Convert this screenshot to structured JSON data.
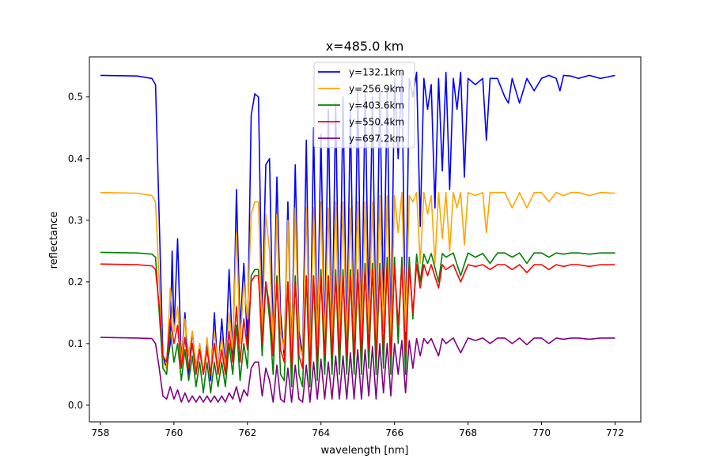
{
  "chart_data": {
    "type": "line",
    "title": "x=485.0 km",
    "xlabel": "wavelength [nm]",
    "ylabel": "reflectance",
    "xlim": [
      757.7,
      772.7
    ],
    "ylim": [
      -0.027,
      0.565
    ],
    "xticks": [
      758,
      760,
      762,
      764,
      766,
      768,
      770,
      772
    ],
    "xtick_labels": [
      "758",
      "760",
      "762",
      "764",
      "766",
      "768",
      "770",
      "772"
    ],
    "yticks": [
      0.0,
      0.1,
      0.2,
      0.3,
      0.4,
      0.5
    ],
    "ytick_labels": [
      "0.0",
      "0.1",
      "0.2",
      "0.3",
      "0.4",
      "0.5"
    ],
    "grid": false,
    "legend_position": "top-center",
    "series": [
      {
        "name": "y=132.1km",
        "color": "#0000ff",
        "x": [
          758.0,
          759.0,
          759.4,
          759.5,
          759.6,
          759.7,
          759.8,
          759.9,
          759.95,
          760.0,
          760.1,
          760.2,
          760.3,
          760.4,
          760.5,
          760.6,
          760.7,
          760.8,
          760.9,
          761.0,
          761.1,
          761.2,
          761.3,
          761.4,
          761.5,
          761.6,
          761.65,
          761.7,
          761.8,
          761.9,
          762.0,
          762.1,
          762.2,
          762.3,
          762.4,
          762.5,
          762.6,
          762.7,
          762.8,
          762.9,
          763.0,
          763.1,
          763.2,
          763.3,
          763.4,
          763.5,
          763.6,
          763.7,
          763.8,
          763.9,
          764.0,
          764.1,
          764.2,
          764.3,
          764.4,
          764.5,
          764.6,
          764.7,
          764.8,
          764.9,
          765.0,
          765.1,
          765.2,
          765.3,
          765.4,
          765.5,
          765.6,
          765.7,
          765.8,
          765.9,
          766.0,
          766.1,
          766.2,
          766.3,
          766.4,
          766.5,
          766.6,
          766.7,
          766.8,
          766.9,
          767.0,
          767.1,
          767.2,
          767.3,
          767.4,
          767.5,
          767.6,
          767.7,
          767.8,
          767.9,
          768.0,
          768.2,
          768.4,
          768.5,
          768.6,
          768.8,
          769.0,
          769.1,
          769.2,
          769.4,
          769.6,
          769.8,
          770.0,
          770.2,
          770.4,
          770.5,
          770.6,
          770.8,
          771.0,
          771.3,
          771.6,
          772.0
        ],
        "y": [
          0.535,
          0.534,
          0.53,
          0.52,
          0.3,
          0.08,
          0.06,
          0.1,
          0.25,
          0.12,
          0.27,
          0.07,
          0.15,
          0.05,
          0.12,
          0.06,
          0.1,
          0.05,
          0.1,
          0.04,
          0.15,
          0.05,
          0.14,
          0.06,
          0.22,
          0.08,
          0.2,
          0.35,
          0.12,
          0.23,
          0.1,
          0.47,
          0.505,
          0.5,
          0.15,
          0.39,
          0.4,
          0.1,
          0.37,
          0.15,
          0.08,
          0.33,
          0.08,
          0.39,
          0.12,
          0.08,
          0.43,
          0.05,
          0.45,
          0.1,
          0.44,
          0.1,
          0.48,
          0.1,
          0.49,
          0.1,
          0.5,
          0.1,
          0.48,
          0.1,
          0.51,
          0.1,
          0.51,
          0.15,
          0.5,
          0.1,
          0.52,
          0.15,
          0.51,
          0.1,
          0.53,
          0.4,
          0.54,
          0.1,
          0.53,
          0.5,
          0.54,
          0.29,
          0.53,
          0.48,
          0.52,
          0.32,
          0.53,
          0.38,
          0.54,
          0.35,
          0.53,
          0.48,
          0.54,
          0.37,
          0.53,
          0.52,
          0.53,
          0.43,
          0.53,
          0.53,
          0.5,
          0.49,
          0.53,
          0.49,
          0.53,
          0.51,
          0.53,
          0.535,
          0.53,
          0.51,
          0.535,
          0.534,
          0.53,
          0.535,
          0.53,
          0.535
        ]
      },
      {
        "name": "y=256.9km",
        "color": "#ffa500",
        "x": [
          758.0,
          759.0,
          759.4,
          759.5,
          759.6,
          759.7,
          759.8,
          759.9,
          760.0,
          760.1,
          760.2,
          760.3,
          760.4,
          760.5,
          760.6,
          760.7,
          760.8,
          760.9,
          761.0,
          761.1,
          761.2,
          761.3,
          761.4,
          761.5,
          761.6,
          761.7,
          761.8,
          761.9,
          762.0,
          762.1,
          762.2,
          762.3,
          762.4,
          762.5,
          762.6,
          762.7,
          762.8,
          762.9,
          763.0,
          763.1,
          763.2,
          763.3,
          763.4,
          763.5,
          763.6,
          763.7,
          763.8,
          763.9,
          764.0,
          764.1,
          764.2,
          764.3,
          764.4,
          764.5,
          764.6,
          764.7,
          764.8,
          764.9,
          765.0,
          765.1,
          765.2,
          765.3,
          765.4,
          765.5,
          765.6,
          765.7,
          765.8,
          765.9,
          766.0,
          766.1,
          766.2,
          766.3,
          766.4,
          766.5,
          766.6,
          766.7,
          766.8,
          766.9,
          767.0,
          767.1,
          767.2,
          767.3,
          767.4,
          767.5,
          767.6,
          767.7,
          767.8,
          767.9,
          768.0,
          768.2,
          768.4,
          768.5,
          768.6,
          768.8,
          769.0,
          769.2,
          769.4,
          769.6,
          769.8,
          770.0,
          770.2,
          770.4,
          770.6,
          770.8,
          771.0,
          771.3,
          771.6,
          772.0
        ],
        "y": [
          0.345,
          0.344,
          0.34,
          0.33,
          0.2,
          0.07,
          0.06,
          0.19,
          0.12,
          0.16,
          0.07,
          0.14,
          0.08,
          0.12,
          0.06,
          0.1,
          0.05,
          0.11,
          0.05,
          0.12,
          0.06,
          0.11,
          0.06,
          0.15,
          0.09,
          0.28,
          0.1,
          0.2,
          0.14,
          0.31,
          0.33,
          0.33,
          0.12,
          0.31,
          0.25,
          0.1,
          0.31,
          0.12,
          0.09,
          0.3,
          0.08,
          0.32,
          0.1,
          0.08,
          0.32,
          0.06,
          0.32,
          0.1,
          0.33,
          0.1,
          0.32,
          0.1,
          0.33,
          0.1,
          0.33,
          0.1,
          0.32,
          0.1,
          0.33,
          0.1,
          0.33,
          0.12,
          0.33,
          0.1,
          0.34,
          0.12,
          0.34,
          0.1,
          0.34,
          0.28,
          0.345,
          0.12,
          0.34,
          0.33,
          0.345,
          0.23,
          0.345,
          0.31,
          0.34,
          0.23,
          0.345,
          0.27,
          0.345,
          0.25,
          0.345,
          0.32,
          0.345,
          0.26,
          0.345,
          0.34,
          0.345,
          0.28,
          0.345,
          0.345,
          0.345,
          0.32,
          0.345,
          0.32,
          0.345,
          0.345,
          0.33,
          0.345,
          0.34,
          0.345,
          0.345,
          0.34,
          0.345,
          0.344
        ]
      },
      {
        "name": "y=403.6km",
        "color": "#008000",
        "x": [
          758.0,
          759.0,
          759.4,
          759.5,
          759.6,
          759.7,
          759.8,
          759.9,
          760.0,
          760.1,
          760.2,
          760.3,
          760.4,
          760.5,
          760.6,
          760.7,
          760.8,
          760.9,
          761.0,
          761.1,
          761.2,
          761.3,
          761.4,
          761.5,
          761.6,
          761.7,
          761.8,
          761.9,
          762.0,
          762.1,
          762.2,
          762.3,
          762.4,
          762.5,
          762.6,
          762.7,
          762.8,
          762.9,
          763.0,
          763.1,
          763.2,
          763.3,
          763.4,
          763.5,
          763.6,
          763.7,
          763.8,
          763.9,
          764.0,
          764.1,
          764.2,
          764.3,
          764.4,
          764.5,
          764.6,
          764.7,
          764.8,
          764.9,
          765.0,
          765.1,
          765.2,
          765.3,
          765.4,
          765.5,
          765.6,
          765.7,
          765.8,
          765.9,
          766.0,
          766.1,
          766.2,
          766.3,
          766.4,
          766.5,
          766.6,
          766.7,
          766.8,
          766.9,
          767.0,
          767.2,
          767.3,
          767.4,
          767.6,
          767.8,
          768.0,
          768.2,
          768.4,
          768.6,
          768.8,
          769.0,
          769.2,
          769.4,
          769.6,
          769.8,
          770.0,
          770.2,
          770.4,
          770.6,
          770.8,
          771.0,
          771.3,
          771.6,
          772.0
        ],
        "y": [
          0.248,
          0.247,
          0.245,
          0.24,
          0.15,
          0.06,
          0.05,
          0.12,
          0.07,
          0.1,
          0.04,
          0.09,
          0.04,
          0.08,
          0.03,
          0.07,
          0.02,
          0.07,
          0.02,
          0.07,
          0.03,
          0.07,
          0.03,
          0.1,
          0.05,
          0.13,
          0.04,
          0.1,
          0.06,
          0.21,
          0.22,
          0.22,
          0.08,
          0.2,
          0.14,
          0.05,
          0.21,
          0.05,
          0.04,
          0.2,
          0.03,
          0.21,
          0.05,
          0.03,
          0.21,
          0.03,
          0.21,
          0.04,
          0.22,
          0.05,
          0.21,
          0.05,
          0.22,
          0.05,
          0.22,
          0.05,
          0.22,
          0.05,
          0.22,
          0.05,
          0.23,
          0.06,
          0.23,
          0.05,
          0.23,
          0.06,
          0.24,
          0.05,
          0.24,
          0.1,
          0.24,
          0.05,
          0.24,
          0.14,
          0.245,
          0.2,
          0.245,
          0.23,
          0.246,
          0.2,
          0.246,
          0.24,
          0.247,
          0.21,
          0.247,
          0.24,
          0.246,
          0.23,
          0.247,
          0.247,
          0.24,
          0.247,
          0.23,
          0.247,
          0.247,
          0.24,
          0.247,
          0.245,
          0.247,
          0.247,
          0.245,
          0.247,
          0.247
        ]
      },
      {
        "name": "y=550.4km",
        "color": "#ff0000",
        "x": [
          758.0,
          759.0,
          759.4,
          759.5,
          759.6,
          759.7,
          759.8,
          759.9,
          760.0,
          760.1,
          760.2,
          760.3,
          760.4,
          760.5,
          760.6,
          760.7,
          760.8,
          760.9,
          761.0,
          761.1,
          761.2,
          761.3,
          761.4,
          761.5,
          761.6,
          761.7,
          761.8,
          761.9,
          762.0,
          762.1,
          762.2,
          762.3,
          762.4,
          762.5,
          762.6,
          762.7,
          762.8,
          762.9,
          763.0,
          763.1,
          763.2,
          763.3,
          763.4,
          763.5,
          763.6,
          763.7,
          763.8,
          763.9,
          764.0,
          764.1,
          764.2,
          764.3,
          764.4,
          764.5,
          764.6,
          764.7,
          764.8,
          764.9,
          765.0,
          765.1,
          765.2,
          765.3,
          765.4,
          765.5,
          765.6,
          765.7,
          765.8,
          765.9,
          766.0,
          766.1,
          766.2,
          766.3,
          766.4,
          766.5,
          766.6,
          766.7,
          766.8,
          766.9,
          767.0,
          767.2,
          767.3,
          767.4,
          767.6,
          767.8,
          768.0,
          768.2,
          768.4,
          768.6,
          768.8,
          769.0,
          769.2,
          769.4,
          769.6,
          769.8,
          770.0,
          770.2,
          770.4,
          770.6,
          770.8,
          771.0,
          771.3,
          771.6,
          772.0
        ],
        "y": [
          0.229,
          0.228,
          0.226,
          0.22,
          0.16,
          0.08,
          0.07,
          0.14,
          0.1,
          0.13,
          0.06,
          0.11,
          0.06,
          0.1,
          0.05,
          0.09,
          0.05,
          0.09,
          0.05,
          0.1,
          0.05,
          0.09,
          0.05,
          0.12,
          0.07,
          0.16,
          0.07,
          0.14,
          0.09,
          0.2,
          0.21,
          0.21,
          0.1,
          0.2,
          0.16,
          0.08,
          0.2,
          0.09,
          0.07,
          0.2,
          0.06,
          0.2,
          0.08,
          0.06,
          0.21,
          0.06,
          0.21,
          0.07,
          0.21,
          0.08,
          0.21,
          0.08,
          0.21,
          0.08,
          0.21,
          0.08,
          0.21,
          0.08,
          0.22,
          0.08,
          0.22,
          0.09,
          0.22,
          0.08,
          0.22,
          0.09,
          0.225,
          0.08,
          0.225,
          0.13,
          0.225,
          0.08,
          0.225,
          0.15,
          0.228,
          0.19,
          0.228,
          0.21,
          0.228,
          0.19,
          0.228,
          0.22,
          0.228,
          0.2,
          0.228,
          0.225,
          0.228,
          0.22,
          0.228,
          0.228,
          0.22,
          0.228,
          0.215,
          0.228,
          0.228,
          0.22,
          0.228,
          0.225,
          0.228,
          0.228,
          0.225,
          0.228,
          0.228
        ]
      },
      {
        "name": "y=697.2km",
        "color": "#800080",
        "x": [
          758.0,
          759.0,
          759.4,
          759.5,
          759.6,
          759.7,
          759.8,
          759.9,
          760.0,
          760.1,
          760.2,
          760.3,
          760.4,
          760.5,
          760.6,
          760.7,
          760.8,
          760.9,
          761.0,
          761.1,
          761.2,
          761.3,
          761.4,
          761.5,
          761.6,
          761.7,
          761.8,
          761.9,
          762.0,
          762.1,
          762.2,
          762.3,
          762.4,
          762.5,
          762.6,
          762.7,
          762.8,
          762.9,
          763.0,
          763.1,
          763.2,
          763.3,
          763.4,
          763.5,
          763.6,
          763.7,
          763.8,
          763.9,
          764.0,
          764.1,
          764.2,
          764.3,
          764.4,
          764.5,
          764.6,
          764.7,
          764.8,
          764.9,
          765.0,
          765.1,
          765.2,
          765.3,
          765.4,
          765.5,
          765.6,
          765.7,
          765.8,
          765.9,
          766.0,
          766.1,
          766.2,
          766.3,
          766.4,
          766.5,
          766.6,
          766.7,
          766.8,
          766.9,
          767.0,
          767.2,
          767.3,
          767.4,
          767.6,
          767.8,
          768.0,
          768.2,
          768.4,
          768.6,
          768.8,
          769.0,
          769.2,
          769.4,
          769.6,
          769.8,
          770.0,
          770.2,
          770.4,
          770.6,
          770.8,
          771.0,
          771.3,
          771.6,
          772.0
        ],
        "y": [
          0.11,
          0.109,
          0.108,
          0.1,
          0.06,
          0.015,
          0.01,
          0.03,
          0.01,
          0.025,
          0.005,
          0.02,
          0.005,
          0.015,
          0.005,
          0.015,
          0.005,
          0.015,
          0.005,
          0.015,
          0.005,
          0.015,
          0.005,
          0.02,
          0.01,
          0.03,
          0.005,
          0.025,
          0.015,
          0.06,
          0.07,
          0.07,
          0.015,
          0.06,
          0.04,
          0.005,
          0.065,
          0.01,
          0.005,
          0.06,
          0.005,
          0.065,
          0.01,
          0.005,
          0.065,
          0.005,
          0.07,
          0.01,
          0.075,
          0.01,
          0.07,
          0.01,
          0.08,
          0.01,
          0.08,
          0.01,
          0.085,
          0.01,
          0.09,
          0.01,
          0.09,
          0.015,
          0.095,
          0.01,
          0.1,
          0.02,
          0.1,
          0.015,
          0.1,
          0.05,
          0.105,
          0.02,
          0.105,
          0.06,
          0.108,
          0.08,
          0.108,
          0.1,
          0.108,
          0.08,
          0.108,
          0.1,
          0.109,
          0.085,
          0.109,
          0.105,
          0.109,
          0.1,
          0.109,
          0.109,
          0.1,
          0.109,
          0.098,
          0.109,
          0.109,
          0.1,
          0.109,
          0.107,
          0.109,
          0.109,
          0.107,
          0.109,
          0.109
        ]
      }
    ]
  }
}
